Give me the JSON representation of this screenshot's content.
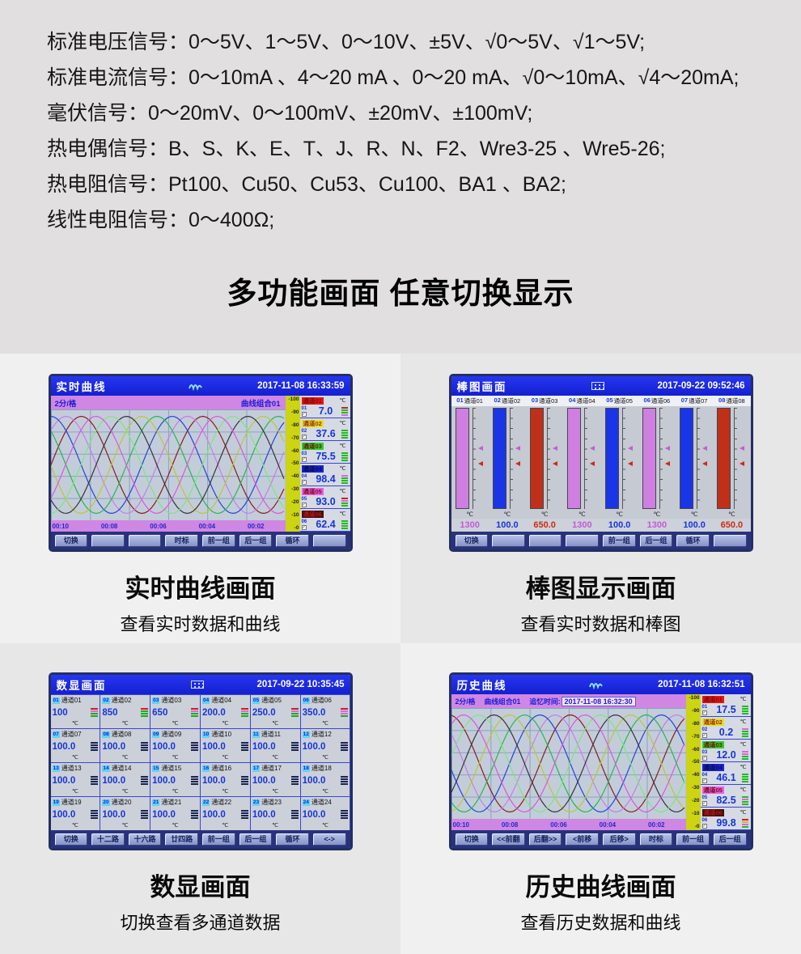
{
  "page": {
    "specs": [
      "标准电压信号：0～5V、1～5V、0～10V、±5V、√0～5V、√1～5V;",
      "标准电流信号：0～10mA 、4～20 mA 、0～20 mA、√0～10mA、√4～20mA;",
      "毫伏信号：0～20mV、0～100mV、±20mV、±100mV;",
      "热电偶信号：B、S、K、E、T、J、R、N、F2、Wre3-25 、Wre5-26;",
      "热电阻信号：Pt100、Cu50、Cu53、Cu100、BA1 、BA2;",
      "线性电阻信号：0～400Ω;"
    ],
    "heading": "多功能画面 任意切换显示"
  },
  "scale": [
    "100",
    "90",
    "80",
    "70",
    "60",
    "50",
    "40",
    "30",
    "20",
    "10",
    "0"
  ],
  "time_axis": [
    "00:10",
    "00:08",
    "00:06",
    "00:04",
    "00:02"
  ],
  "curve_colors": [
    "#8b1a1a",
    "#c87ce6",
    "#2343d8",
    "#22b84e",
    "#b9c832",
    "#3a2f3a",
    "#7ce67c",
    "#d957d9"
  ],
  "screens": {
    "realtime": {
      "title": "实时曲线",
      "time": "2017-11-08 16:33:59",
      "interval": "2分/格",
      "group": "曲线组合01",
      "unit": "℃",
      "channels": [
        {
          "num": "01",
          "name": "通道01",
          "color": "#e81515",
          "tcolor": "#7a0d0d",
          "value": "7.0",
          "ind": [
            "#cc2222",
            "#22bb22",
            "#22bb22",
            "#dd66dd"
          ]
        },
        {
          "num": "02",
          "name": "通道02",
          "color": "#e8e020",
          "tcolor": "#9a3010",
          "value": "37.6",
          "ind": [
            "#22bb22",
            "#22bb22",
            "#22bb22",
            "#22bb22"
          ]
        },
        {
          "num": "03",
          "name": "通道03",
          "color": "#28d22a",
          "tcolor": "#7a0d0d",
          "value": "75.5",
          "ind": [
            "#22bb22",
            "#22bb22",
            "#22bb22",
            "#22bb22"
          ]
        },
        {
          "num": "04",
          "name": "通道04",
          "color": "#1822dd",
          "tcolor": "#0a1040",
          "value": "98.4",
          "ind": [
            "#dd66dd",
            "#22bb22",
            "#22bb22",
            "#22bb22"
          ]
        },
        {
          "num": "05",
          "name": "通道05",
          "color": "#e85ee8",
          "tcolor": "#7a0d0d",
          "value": "93.0",
          "ind": [
            "#cc2222",
            "#dd66dd",
            "#22bb22",
            "#22bb22"
          ]
        },
        {
          "num": "06",
          "name": "通道06",
          "color": "#4a0c0c",
          "tcolor": "#b01818",
          "value": "62.4",
          "ind": [
            "#22bb22",
            "#22bb22",
            "#22bb22",
            "#22bb22"
          ]
        }
      ],
      "buttons": [
        "切换",
        "",
        "",
        "时标",
        "前一组",
        "后一组",
        "循环",
        ""
      ],
      "caption": {
        "title": "实时曲线画面",
        "sub": "查看实时数据和曲线"
      }
    },
    "bar": {
      "title": "棒图画面",
      "time": "2017-09-22 09:52:46",
      "unit": "℃",
      "channels": [
        {
          "num": "01",
          "name": "通道01",
          "color": "#cf7fe0",
          "vcolor": "#c25ad6",
          "value": "1300"
        },
        {
          "num": "02",
          "name": "通道02",
          "color": "#1a35e6",
          "vcolor": "#1535e0",
          "value": "100.0"
        },
        {
          "num": "03",
          "name": "通道03",
          "color": "#c03018",
          "vcolor": "#cc2a14",
          "value": "650.0"
        },
        {
          "num": "04",
          "name": "通道04",
          "color": "#cf7fe0",
          "vcolor": "#c25ad6",
          "value": "1300"
        },
        {
          "num": "05",
          "name": "通道05",
          "color": "#1a35e6",
          "vcolor": "#1535e0",
          "value": "100.0"
        },
        {
          "num": "06",
          "name": "通道06",
          "color": "#cf7fe0",
          "vcolor": "#c25ad6",
          "value": "1300"
        },
        {
          "num": "07",
          "name": "通道07",
          "color": "#1a35e6",
          "vcolor": "#1535e0",
          "value": "100.0"
        },
        {
          "num": "08",
          "name": "通道08",
          "color": "#c03018",
          "vcolor": "#cc2a14",
          "value": "650.0"
        }
      ],
      "buttons": [
        "切换",
        "",
        "",
        "",
        "前一组",
        "后一组",
        "循环",
        ""
      ],
      "caption": {
        "title": "棒图显示画面",
        "sub": "查看实时数据和棒图"
      }
    },
    "digital": {
      "title": "数显画面",
      "time": "2017-09-22 10:35:45",
      "unit": "℃",
      "cells": [
        {
          "num": "01",
          "name": "通道01",
          "value": "100",
          "ind": [
            "#cc2222",
            "#dd66dd",
            "#22aa22",
            "#22aa22"
          ]
        },
        {
          "num": "02",
          "name": "通道02",
          "value": "850",
          "ind": [
            "#cc2222",
            "#22aa22",
            "#22aa22",
            "#22aa22"
          ]
        },
        {
          "num": "03",
          "name": "通道03",
          "value": "650",
          "ind": [
            "#cc2222",
            "#dd66dd",
            "#22aa22",
            "#22aa22"
          ]
        },
        {
          "num": "04",
          "name": "通道04",
          "value": "200.0",
          "ind": [
            "#cc2222",
            "#dd66dd",
            "#22aa22",
            "#22aa22"
          ]
        },
        {
          "num": "05",
          "name": "通道05",
          "value": "250.0",
          "ind": [
            "#cc2222",
            "#dd66dd",
            "#22aa22",
            "#22aa22"
          ]
        },
        {
          "num": "06",
          "name": "通道06",
          "value": "350.0",
          "ind": [
            "#cc2222",
            "#dd66dd",
            "#dd66dd",
            "#22aa22"
          ]
        },
        {
          "num": "07",
          "name": "通道07",
          "value": "100.0",
          "ind": [
            "#1a2550",
            "#1a2550",
            "#1a2550",
            "#1a2550"
          ]
        },
        {
          "num": "08",
          "name": "通道08",
          "value": "100.0",
          "ind": [
            "#1a2550",
            "#1a2550",
            "#1a2550",
            "#1a2550"
          ]
        },
        {
          "num": "09",
          "name": "通道09",
          "value": "100.0",
          "ind": [
            "#1a2550",
            "#1a2550",
            "#1a2550",
            "#1a2550"
          ]
        },
        {
          "num": "10",
          "name": "通道10",
          "value": "100.0",
          "ind": [
            "#1a2550",
            "#1a2550",
            "#1a2550",
            "#1a2550"
          ]
        },
        {
          "num": "11",
          "name": "通道11",
          "value": "100.0",
          "ind": [
            "#1a2550",
            "#1a2550",
            "#1a2550",
            "#1a2550"
          ]
        },
        {
          "num": "12",
          "name": "通道12",
          "value": "100.0",
          "ind": [
            "#1a2550",
            "#1a2550",
            "#1a2550",
            "#1a2550"
          ]
        },
        {
          "num": "13",
          "name": "通道13",
          "value": "100.0",
          "ind": [
            "#1a2550",
            "#1a2550",
            "#1a2550",
            "#1a2550"
          ]
        },
        {
          "num": "14",
          "name": "通道14",
          "value": "100.0",
          "ind": [
            "#1a2550",
            "#1a2550",
            "#1a2550",
            "#1a2550"
          ]
        },
        {
          "num": "15",
          "name": "通道15",
          "value": "100.0",
          "ind": [
            "#1a2550",
            "#1a2550",
            "#1a2550",
            "#1a2550"
          ]
        },
        {
          "num": "16",
          "name": "通道16",
          "value": "100.0",
          "ind": [
            "#1a2550",
            "#1a2550",
            "#1a2550",
            "#1a2550"
          ]
        },
        {
          "num": "17",
          "name": "通道17",
          "value": "100.0",
          "ind": [
            "#1a2550",
            "#1a2550",
            "#1a2550",
            "#1a2550"
          ]
        },
        {
          "num": "18",
          "name": "通道18",
          "value": "100.0",
          "ind": [
            "#1a2550",
            "#1a2550",
            "#1a2550",
            "#1a2550"
          ]
        },
        {
          "num": "19",
          "name": "通道19",
          "value": "100.0",
          "ind": [
            "#1a2550",
            "#1a2550",
            "#1a2550",
            "#1a2550"
          ]
        },
        {
          "num": "20",
          "name": "通道20",
          "value": "100.0",
          "ind": [
            "#1a2550",
            "#1a2550",
            "#1a2550",
            "#1a2550"
          ]
        },
        {
          "num": "21",
          "name": "通道21",
          "value": "100.0",
          "ind": [
            "#1a2550",
            "#1a2550",
            "#1a2550",
            "#1a2550"
          ]
        },
        {
          "num": "22",
          "name": "通道22",
          "value": "100.0",
          "ind": [
            "#1a2550",
            "#1a2550",
            "#1a2550",
            "#1a2550"
          ]
        },
        {
          "num": "23",
          "name": "通道23",
          "value": "100.0",
          "ind": [
            "#1a2550",
            "#1a2550",
            "#1a2550",
            "#1a2550"
          ]
        },
        {
          "num": "24",
          "name": "通道24",
          "value": "100.0",
          "ind": [
            "#1a2550",
            "#1a2550",
            "#1a2550",
            "#1a2550"
          ]
        }
      ],
      "buttons": [
        "切换",
        "十二路",
        "十六路",
        "廿四路",
        "前一组",
        "后一组",
        "循环",
        "<->"
      ],
      "caption": {
        "title": "数显画面",
        "sub": "切换查看多通道数据"
      }
    },
    "history": {
      "title": "历史曲线",
      "time": "2017-11-08 16:32:51",
      "interval": "2分/格",
      "group": "曲线组合01",
      "recall_label": "追忆时间:",
      "recall_time": "2017-11-08 16:32:30",
      "unit": "℃",
      "channels": [
        {
          "num": "01",
          "name": "通道01",
          "color": "#e81515",
          "tcolor": "#7a0d0d",
          "value": "17.5",
          "ind": [
            "#22bb22",
            "#22bb22",
            "#22bb22",
            "#22bb22"
          ]
        },
        {
          "num": "02",
          "name": "通道02",
          "color": "#e8e020",
          "tcolor": "#9a3010",
          "value": "0.2",
          "ind": [
            "#dd66dd",
            "#22bb22",
            "#22bb22",
            "#22bb22"
          ]
        },
        {
          "num": "03",
          "name": "通道03",
          "color": "#28d22a",
          "tcolor": "#7a0d0d",
          "value": "12.0",
          "ind": [
            "#dd66dd",
            "#dd66dd",
            "#22bb22",
            "#22bb22"
          ]
        },
        {
          "num": "04",
          "name": "通道04",
          "color": "#1822dd",
          "tcolor": "#0a1040",
          "value": "46.1",
          "ind": [
            "#22bb22",
            "#22bb22",
            "#22bb22",
            "#22bb22"
          ]
        },
        {
          "num": "05",
          "name": "通道05",
          "color": "#e85ee8",
          "tcolor": "#7a0d0d",
          "value": "82.5",
          "ind": [
            "#22bb22",
            "#dd66dd",
            "#22bb22",
            "#22bb22"
          ]
        },
        {
          "num": "06",
          "name": "通道06",
          "color": "#4a0c0c",
          "tcolor": "#b01818",
          "value": "99.8",
          "ind": [
            "#cc2222",
            "#ccbb22",
            "#dd66dd",
            "#22bb22"
          ]
        }
      ],
      "buttons": [
        "切换",
        "<<前翻",
        "后翻>>",
        "<前移",
        "后移>",
        "时标",
        "前一组",
        "后一组"
      ],
      "caption": {
        "title": "历史曲线画面",
        "sub": "查看历史数据和曲线"
      }
    }
  }
}
